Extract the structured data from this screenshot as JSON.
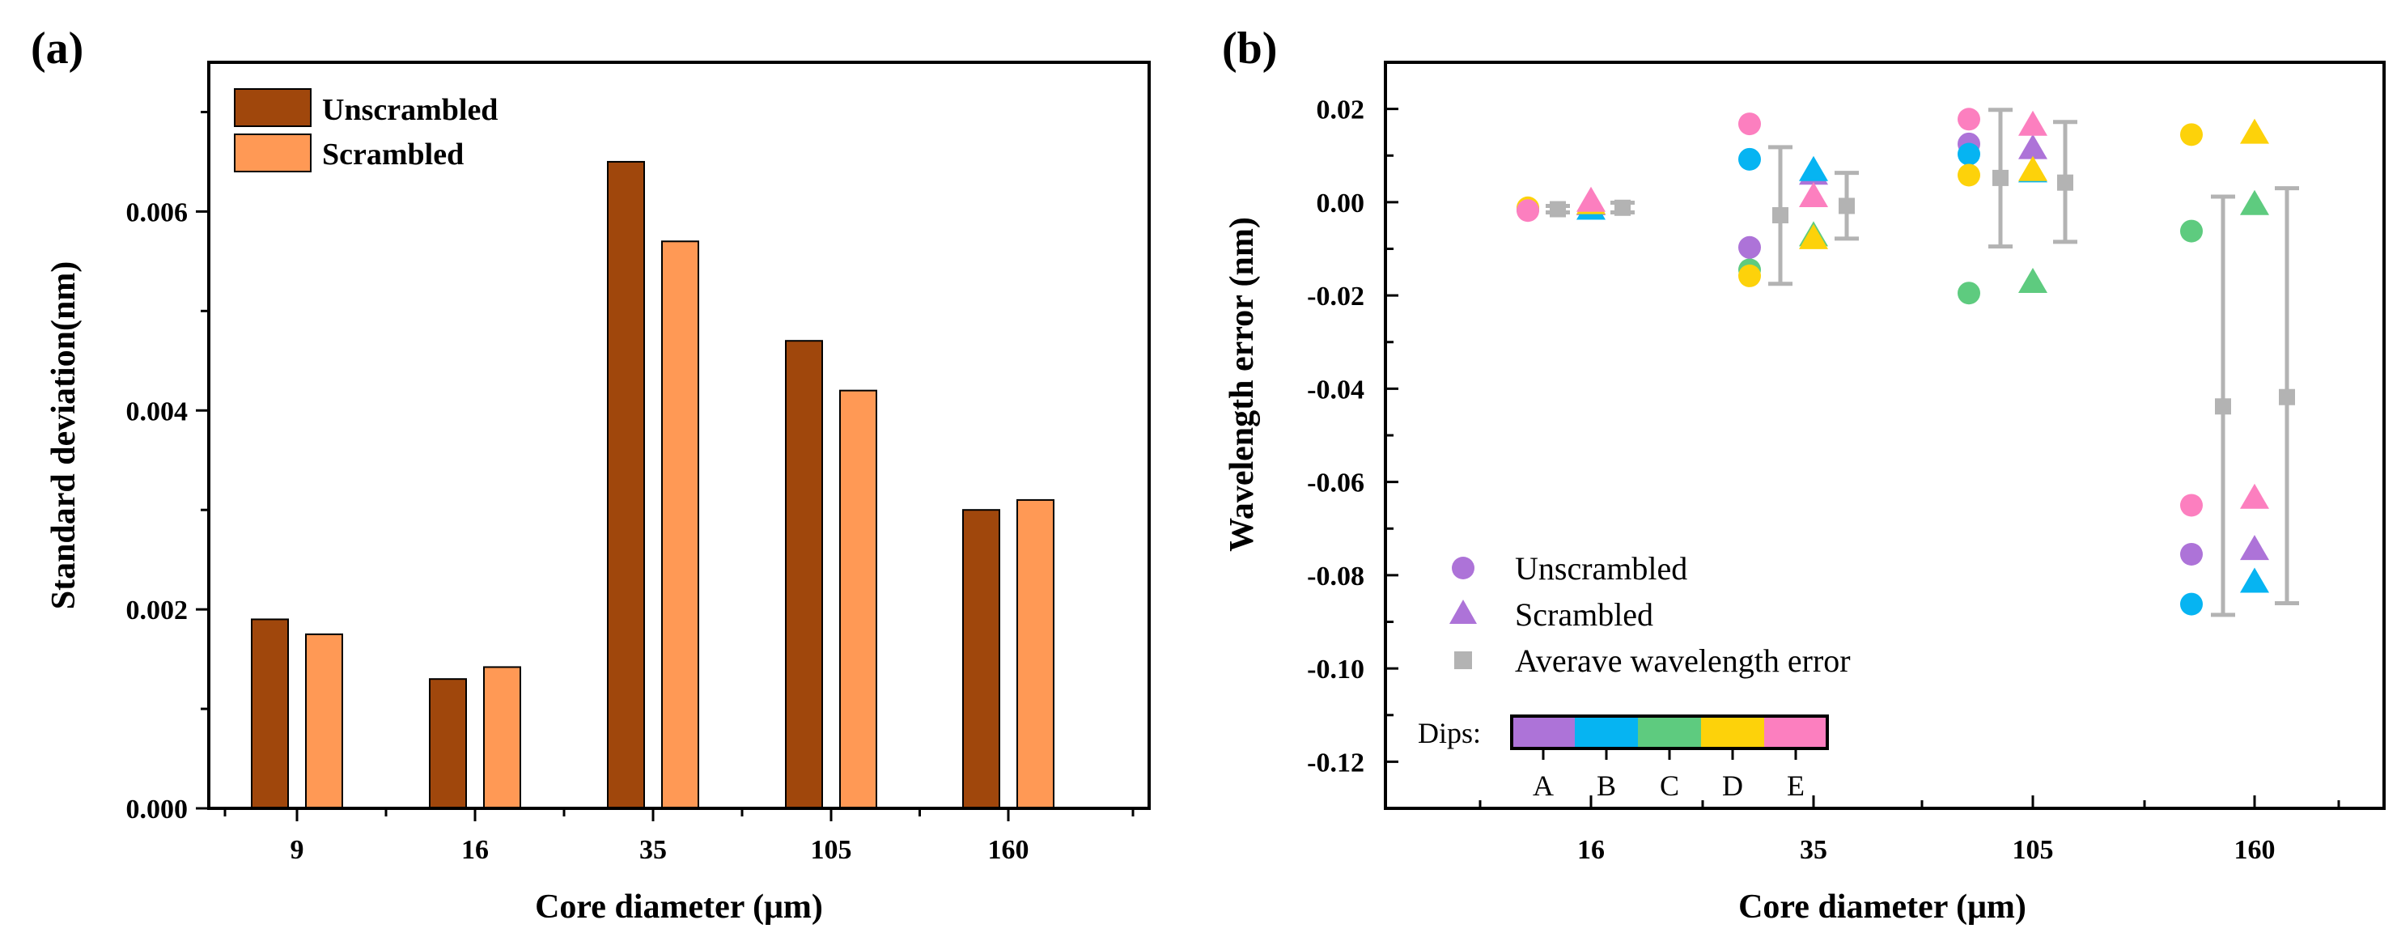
{
  "colors": {
    "unscrambled_bar": "#a0470c",
    "scrambled_bar": "#ff9955",
    "dip_A": "#ad73d8",
    "dip_B": "#06b4f2",
    "dip_C": "#5ecb7f",
    "dip_D": "#fdd20a",
    "dip_E": "#fc7fbf",
    "average": "#b3b3b3"
  },
  "chart_data": [
    {
      "panel": "(a)",
      "type": "bar",
      "xlabel": "Core diameter (μm)",
      "ylabel": "Standard deviation(nm)",
      "ylim": [
        0,
        0.0075
      ],
      "yticks": [
        "0.000",
        "0.002",
        "0.004",
        "0.006"
      ],
      "categories": [
        "9",
        "16",
        "35",
        "105",
        "160"
      ],
      "series": [
        {
          "name": "Unscrambled",
          "color": "#a0470c",
          "values": [
            0.0019,
            0.0013,
            0.0065,
            0.0047,
            0.003
          ]
        },
        {
          "name": "Scrambled",
          "color": "#ff9955",
          "values": [
            0.00175,
            0.00142,
            0.0057,
            0.0042,
            0.0031
          ]
        }
      ],
      "legend": {
        "position": "top-left",
        "entries": [
          "Unscrambled",
          "Scrambled"
        ]
      }
    },
    {
      "panel": "(b)",
      "type": "scatter",
      "xlabel": "Core diameter (μm)",
      "ylabel": "Wavelength error (nm)",
      "ylim": [
        -0.13,
        0.03
      ],
      "yticks": [
        "-0.12",
        "-0.10",
        "-0.08",
        "-0.06",
        "-0.04",
        "-0.02",
        "0.00",
        "0.02"
      ],
      "categories": [
        "16",
        "35",
        "105",
        "160"
      ],
      "dips": [
        "A",
        "B",
        "C",
        "D",
        "E"
      ],
      "dips_label": "Dips:",
      "unscrambled": [
        [
          -0.0015,
          -0.0015,
          -0.0015,
          -0.0012,
          -0.0018
        ],
        [
          -0.0097,
          0.0092,
          -0.0145,
          -0.0158,
          0.0168
        ],
        [
          0.0125,
          0.0103,
          -0.0195,
          0.0058,
          0.0178
        ],
        [
          -0.0755,
          -0.0862,
          -0.0062,
          0.0145,
          -0.065
        ]
      ],
      "scrambled": [
        [
          -0.0005,
          -0.0015,
          -0.0005,
          -0.0003,
          0.0002
        ],
        [
          0.006,
          0.0068,
          -0.0072,
          -0.0078,
          0.0012
        ],
        [
          0.0115,
          0.0065,
          -0.0172,
          0.0068,
          0.0165
        ],
        [
          -0.0745,
          -0.0815,
          -0.0005,
          0.0148,
          -0.0635
        ]
      ],
      "average_unscrambled": [
        {
          "mean": -0.0015,
          "low": -0.0022,
          "high": -0.0008
        },
        {
          "mean": -0.0028,
          "low": -0.0175,
          "high": 0.0118
        },
        {
          "mean": 0.0052,
          "low": -0.0095,
          "high": 0.0198
        },
        {
          "mean": -0.0438,
          "low": -0.0885,
          "high": 0.0012
        }
      ],
      "average_scrambled": [
        {
          "mean": -0.0012,
          "low": -0.0022,
          "high": -0.0001
        },
        {
          "mean": -0.0008,
          "low": -0.0078,
          "high": 0.0063
        },
        {
          "mean": 0.0042,
          "low": -0.0085,
          "high": 0.0172
        },
        {
          "mean": -0.0418,
          "low": -0.086,
          "high": 0.003
        }
      ],
      "legend": {
        "position": "bottom-left",
        "entries": [
          "Unscrambled",
          "Scrambled",
          "Averave wavelength error"
        ]
      }
    }
  ]
}
